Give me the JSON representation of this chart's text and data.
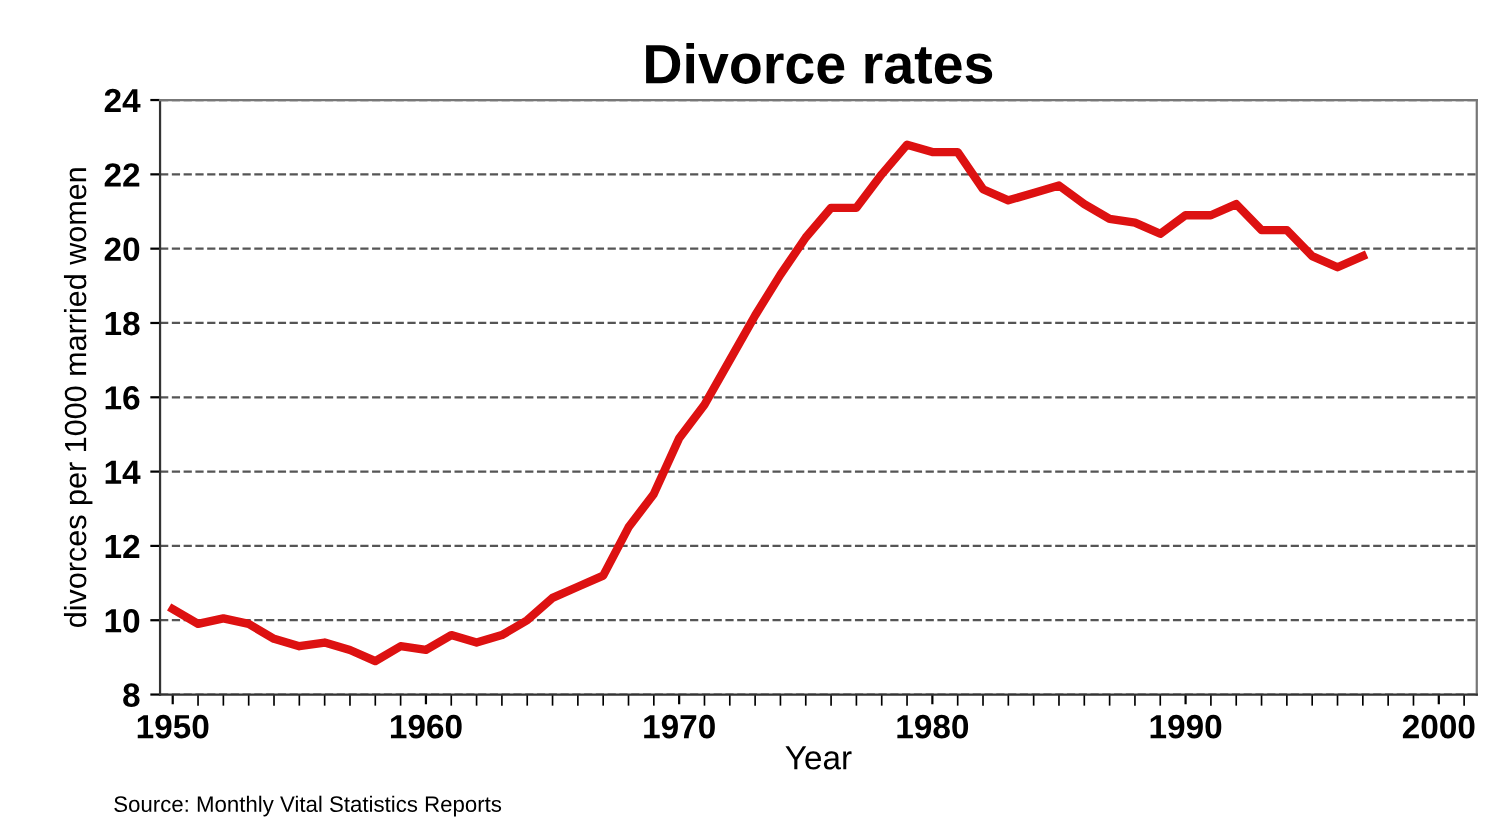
{
  "chart_data": {
    "type": "line",
    "title": "Divorce rates",
    "xlabel": "Year",
    "ylabel": "divorces per 1000 married women",
    "x": [
      1950,
      1951,
      1952,
      1953,
      1954,
      1955,
      1956,
      1957,
      1958,
      1959,
      1960,
      1961,
      1962,
      1963,
      1964,
      1965,
      1966,
      1967,
      1968,
      1969,
      1970,
      1971,
      1972,
      1973,
      1974,
      1975,
      1976,
      1977,
      1978,
      1979,
      1980,
      1981,
      1982,
      1983,
      1984,
      1985,
      1986,
      1987,
      1988,
      1989,
      1990,
      1991,
      1992,
      1993,
      1994,
      1995,
      1996,
      1997
    ],
    "series": [
      {
        "color": "#dd1111",
        "values": [
          10.3,
          9.9,
          10.05,
          9.9,
          9.5,
          9.3,
          9.4,
          9.2,
          8.9,
          9.3,
          9.2,
          9.6,
          9.4,
          9.6,
          10.0,
          10.6,
          10.9,
          11.2,
          12.5,
          13.4,
          14.9,
          15.8,
          17.0,
          18.2,
          19.3,
          20.3,
          21.1,
          21.1,
          22.0,
          22.8,
          22.6,
          22.6,
          21.6,
          21.3,
          21.5,
          21.7,
          21.2,
          20.8,
          20.7,
          20.4,
          20.9,
          20.9,
          21.2,
          20.5,
          20.5,
          19.8,
          19.5,
          19.8
        ]
      }
    ],
    "xlim": [
      1949.5,
      2001.5
    ],
    "xticks": [
      1950,
      1960,
      1970,
      1980,
      1990,
      2000
    ],
    "ylim": [
      8,
      24
    ],
    "yticks": [
      8,
      10,
      12,
      14,
      16,
      18,
      20,
      22,
      24
    ],
    "grid": "y",
    "line_style": "solid",
    "marker": "none",
    "annotations": [
      "Source: Monthly Vital Statistics Reports"
    ]
  }
}
